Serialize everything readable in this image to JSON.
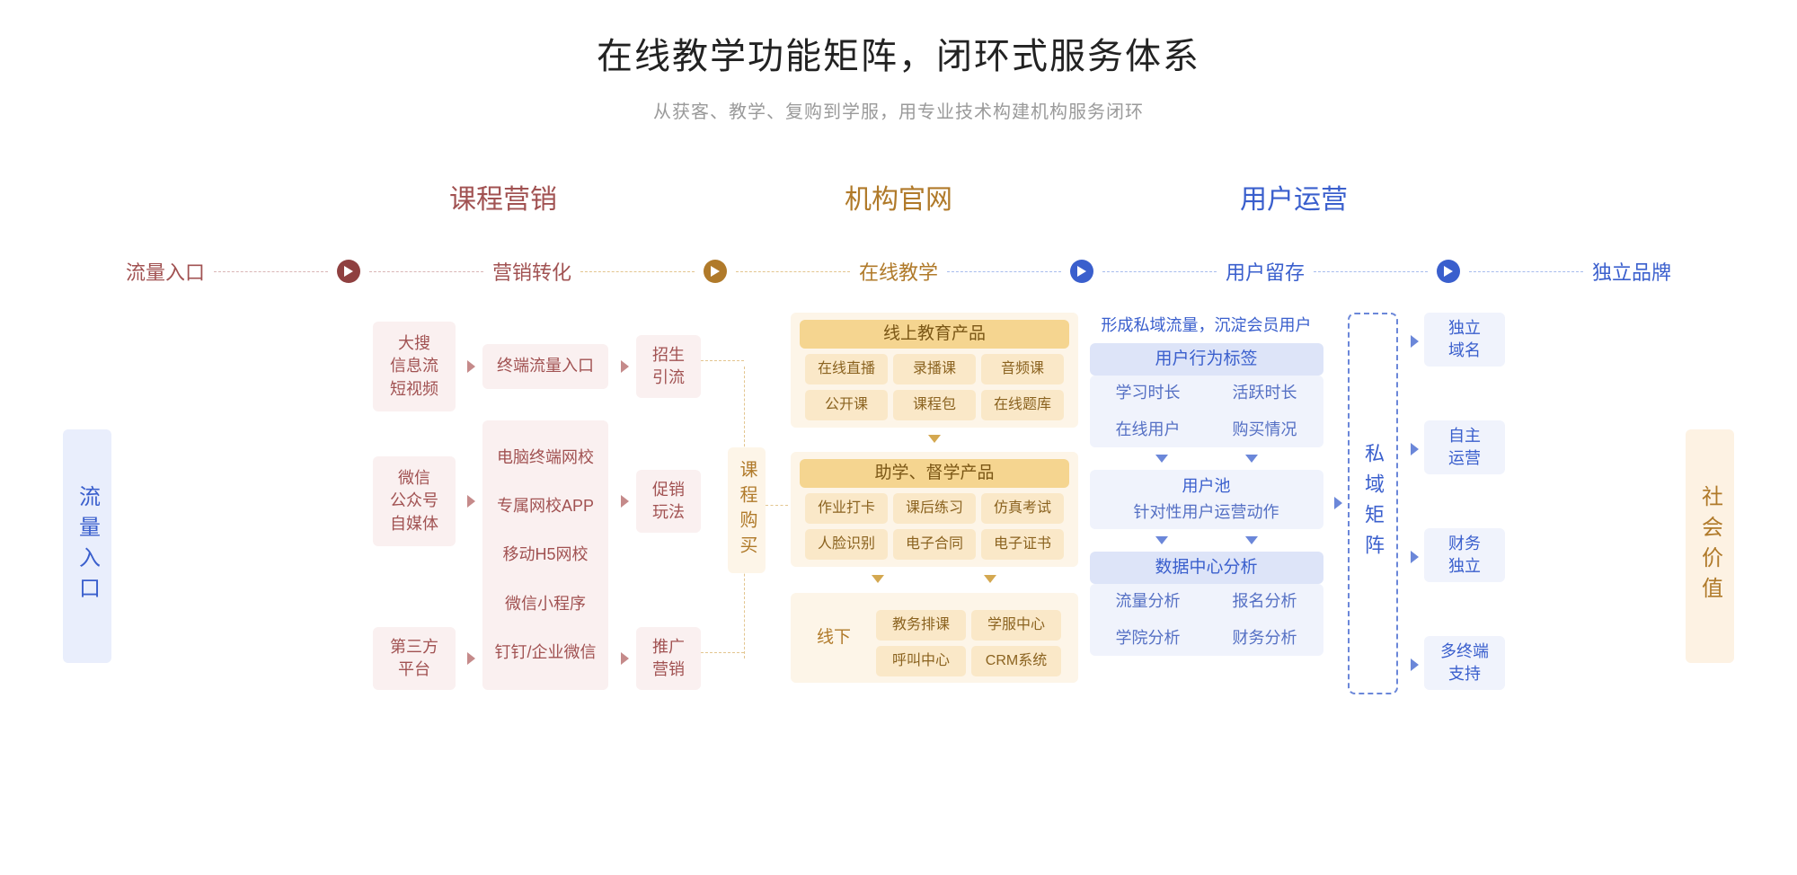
{
  "title": "在线教学功能矩阵，闭环式服务体系",
  "subtitle": "从获客、教学、复购到学服，用专业技术构建机构服务闭环",
  "sections": {
    "marketing": "课程营销",
    "official": "机构官网",
    "operation": "用户运营"
  },
  "stages": {
    "s1": "流量入口",
    "s2": "营销转化",
    "s3": "在线教学",
    "s4": "用户留存",
    "s5": "独立品牌"
  },
  "left_pillar": "流量入口",
  "right_pillar": "社会价值",
  "col1": {
    "a1": "大搜\n信息流\n短视频",
    "a2": "微信\n公众号\n自媒体",
    "a3": "第三方\n平台"
  },
  "col2": {
    "b1": "终端流量入口",
    "b2_list": [
      "电脑终端网校",
      "专属网校APP",
      "移动H5网校",
      "微信小程序",
      "钉钉/企业微信"
    ]
  },
  "col3": {
    "c1": "招生\n引流",
    "c2": "促销\n玩法",
    "c3": "推广\n营销"
  },
  "purchase": "课程购买",
  "teaching": {
    "online_header": "线上教育产品",
    "online_tags": [
      "在线直播",
      "录播课",
      "音频课",
      "公开课",
      "课程包",
      "在线题库"
    ],
    "assist_header": "助学、督学产品",
    "assist_tags": [
      "作业打卡",
      "课后练习",
      "仿真考试",
      "人脸识别",
      "电子合同",
      "电子证书"
    ],
    "offline_label": "线下",
    "offline_tags": [
      "教务排课",
      "学服中心",
      "呼叫中心",
      "CRM系统"
    ]
  },
  "ops": {
    "private_traffic": "形成私域流量，沉淀会员用户",
    "behavior_header": "用户行为标签",
    "behavior_items": [
      "学习时长",
      "活跃时长",
      "在线用户",
      "购买情况"
    ],
    "pool_header": "用户池",
    "pool_sub": "针对性用户运营动作",
    "data_header": "数据中心分析",
    "data_items": [
      "流量分析",
      "报名分析",
      "学院分析",
      "财务分析"
    ]
  },
  "matrix_label": "私域矩阵",
  "brand": {
    "d1": "独立\n域名",
    "d2": "自主\n运营",
    "d3": "财务\n独立",
    "d4": "多终端\n支持"
  },
  "colors": {
    "red": "#a15252",
    "brown": "#b07a2a",
    "blue": "#3a5fcd",
    "red_bg": "#faf0f0",
    "brown_bg_light": "#fdf5e8",
    "brown_bg_mid": "#fae8c8",
    "brown_bg_dark": "#f5d590",
    "blue_bg_light": "#f0f3fc",
    "blue_bg_mid": "#dde4f8",
    "gray_text": "#9a9a9a"
  }
}
